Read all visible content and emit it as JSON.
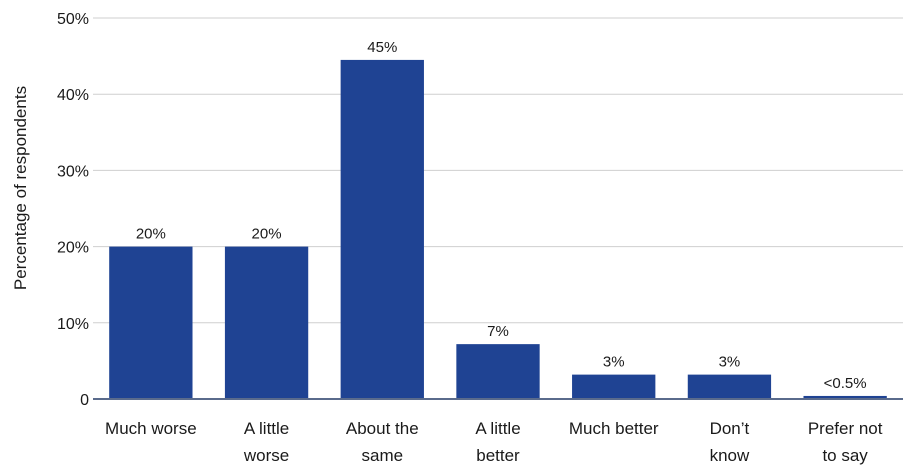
{
  "chart_data": {
    "type": "bar",
    "title": "",
    "xlabel": "",
    "ylabel": "Percentage of respondents",
    "categories": [
      [
        "Much worse"
      ],
      [
        "A little",
        "worse"
      ],
      [
        "About the",
        "same"
      ],
      [
        "A little",
        "better"
      ],
      [
        "Much better"
      ],
      [
        "Don’t",
        "know"
      ],
      [
        "Prefer not",
        "to say"
      ]
    ],
    "values": [
      20,
      20,
      44.5,
      7.2,
      3.2,
      3.2,
      0.4
    ],
    "data_labels": [
      "20%",
      "20%",
      "45%",
      "7%",
      "3%",
      "3%",
      "<0.5%"
    ],
    "ylim": [
      0,
      50
    ],
    "yticks": [
      0,
      10,
      20,
      30,
      40,
      50
    ],
    "ytick_labels": [
      "0",
      "10%",
      "20%",
      "30%",
      "40%",
      "50%"
    ],
    "grid": true,
    "legend": "none",
    "bar_color": "#1f4393",
    "baseline_color": "#5a6b8c",
    "grid_color": "#cfcfcf"
  }
}
